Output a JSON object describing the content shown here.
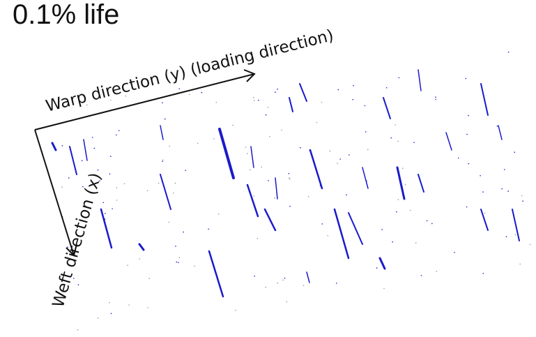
{
  "title": "0.1% life",
  "labels": {
    "warp": "Warp direction (y) (loading direction)",
    "weft": "Weft direction (x)"
  }
}
